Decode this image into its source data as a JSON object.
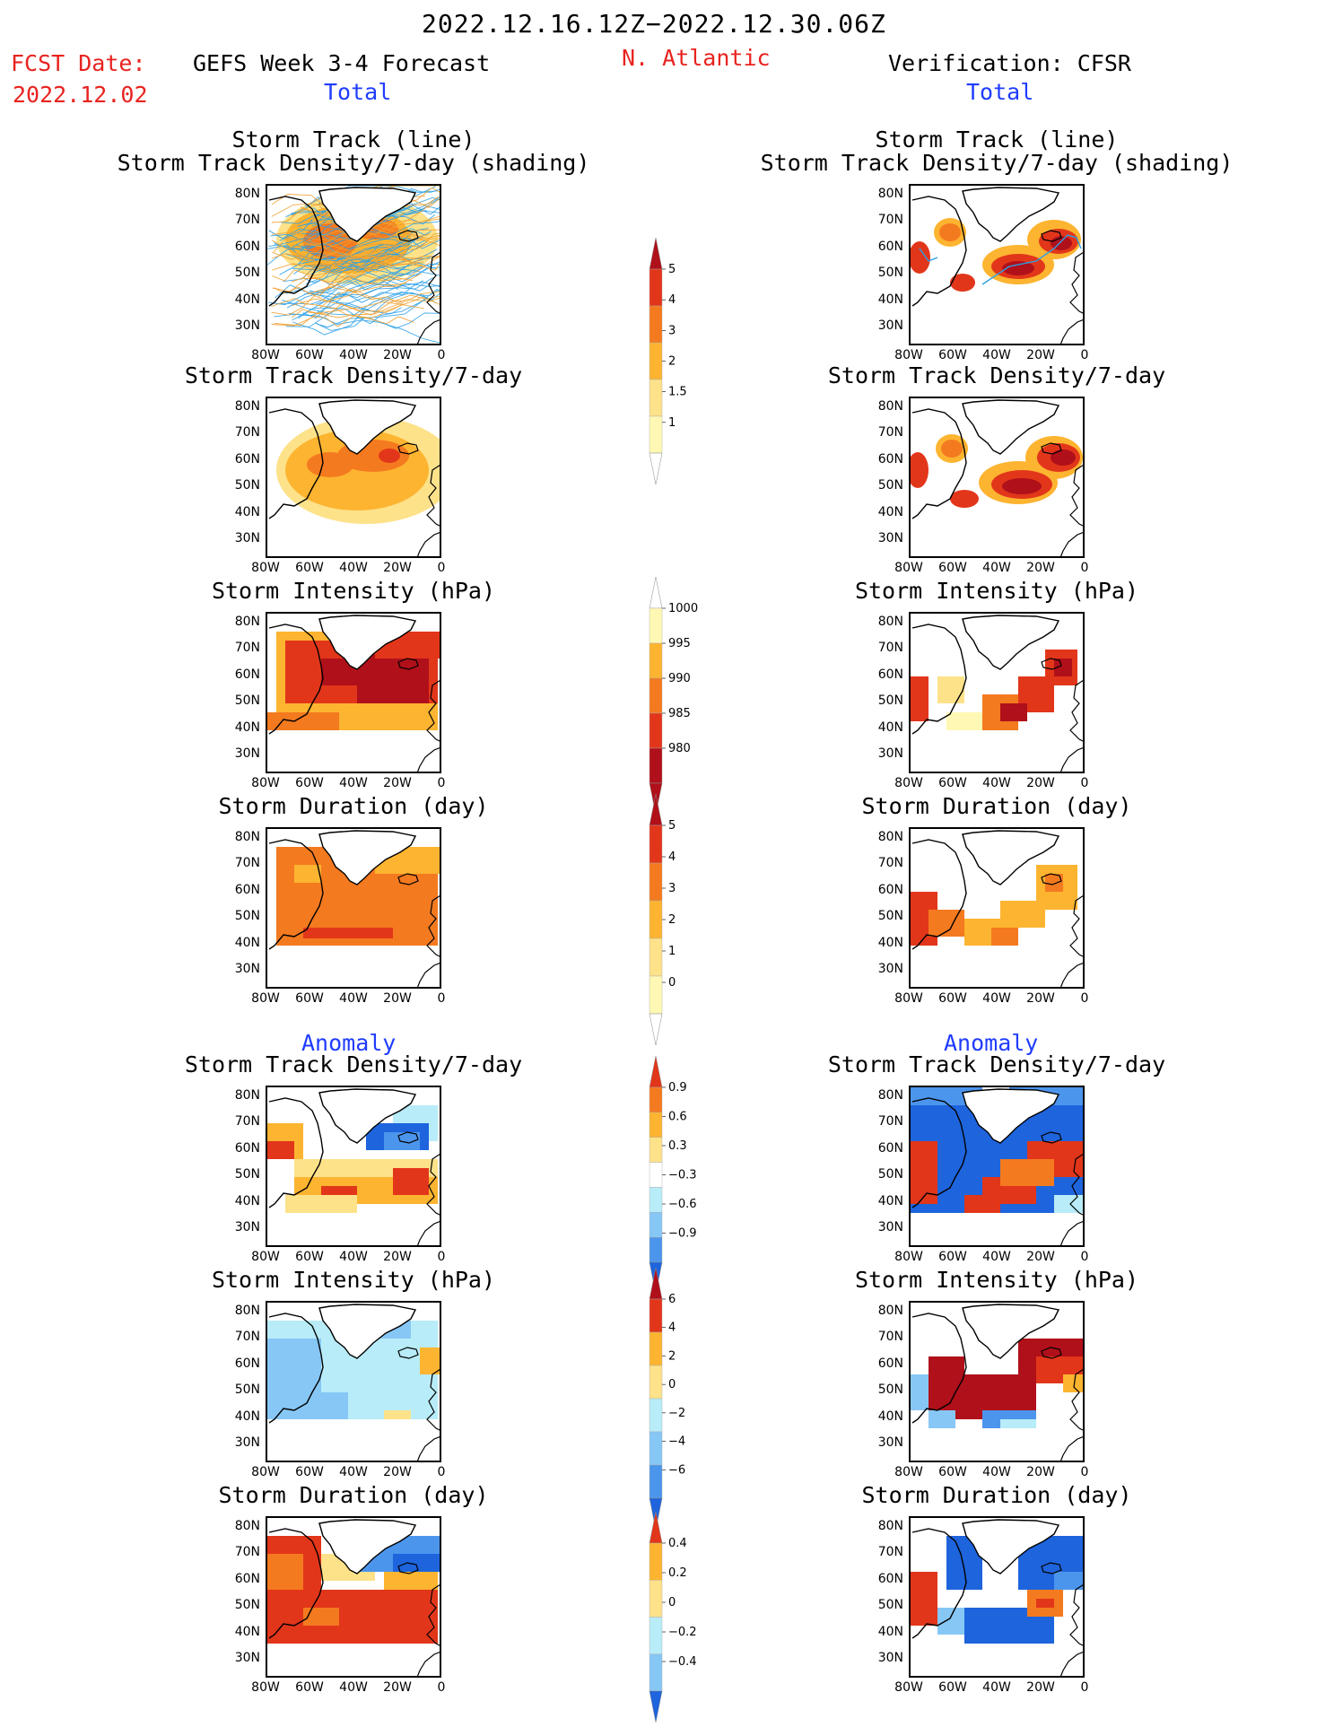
{
  "header": {
    "period": "2022.12.16.12Z−2022.12.30.06Z",
    "region": "N. Atlantic",
    "fcst_label": "FCST Date:",
    "fcst_date": "2022.12.02",
    "left_title": "GEFS Week 3-4 Forecast",
    "right_title": "Verification: CFSR",
    "total_left": "Total",
    "total_right": "Total",
    "anomaly_left": "Anomaly",
    "anomaly_right": "Anomaly"
  },
  "panel_titles": {
    "track_line": "Storm Track (line)",
    "track_density_shading": "Storm Track Density/7-day (shading)",
    "track_density": "Storm Track Density/7-day",
    "intensity": "Storm Intensity (hPa)",
    "duration": "Storm Duration (day)"
  },
  "axes": {
    "lat_ticks": [
      "80N",
      "70N",
      "60N",
      "50N",
      "40N",
      "30N"
    ],
    "lon_ticks": [
      "80W",
      "60W",
      "40W",
      "20W",
      "0"
    ]
  },
  "colorbars": {
    "density_total": [
      "1",
      "1.5",
      "2",
      "3",
      "4",
      "5"
    ],
    "intensity_total": [
      "1000",
      "995",
      "990",
      "985",
      "980"
    ],
    "duration_total": [
      "0",
      "1",
      "2",
      "3",
      "4",
      "5"
    ],
    "density_anom": [
      "0.9",
      "0.6",
      "0.3",
      "−0.3",
      "−0.6",
      "−0.9"
    ],
    "intensity_anom": [
      "6",
      "4",
      "2",
      "0",
      "−2",
      "−4",
      "−6"
    ],
    "duration_anom": [
      "0.4",
      "0.2",
      "0",
      "−0.2",
      "−0.4"
    ]
  },
  "colors": {
    "yellow1": "#fff8b4",
    "yellow2": "#fde28a",
    "orange1": "#fdb430",
    "orange2": "#f47a1f",
    "red1": "#e2361a",
    "red2": "#b0101a",
    "blue1": "#b8ecf8",
    "blue2": "#87c7f6",
    "blue3": "#4c95ec",
    "blue4": "#1e64dc",
    "track_blue": "#2aa0e8",
    "track_orange": "#f0a030"
  }
}
